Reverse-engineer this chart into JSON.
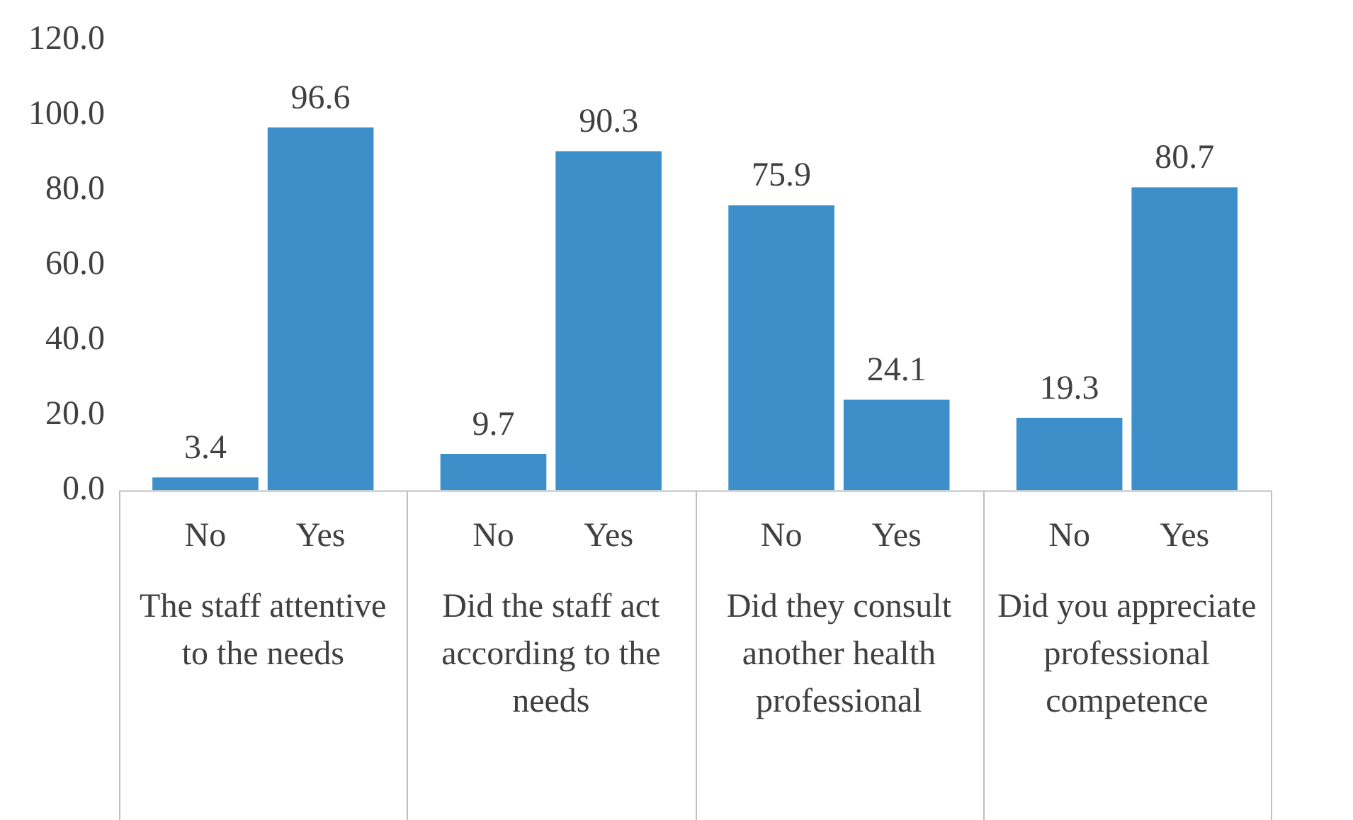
{
  "chart_data": {
    "type": "bar",
    "categories": [
      "The staff attentive to the needs",
      "Did the staff act according to the needs",
      "Did they consult another health professional",
      "Did you appreciate professional competence"
    ],
    "series": [
      {
        "name": "No",
        "color": "#3d8fca",
        "values": [
          3.4,
          9.7,
          75.9,
          19.3
        ]
      },
      {
        "name": "Yes",
        "color": "#3d8fca",
        "values": [
          96.6,
          90.3,
          24.1,
          80.7
        ]
      }
    ],
    "ylim": [
      0,
      120
    ],
    "yticks": [
      {
        "value": 0,
        "label": "0.0"
      },
      {
        "value": 20,
        "label": "20.0"
      },
      {
        "value": 40,
        "label": "40.0"
      },
      {
        "value": 60,
        "label": "60.0"
      },
      {
        "value": 80,
        "label": "80.0"
      },
      {
        "value": 100,
        "label": "100.0"
      },
      {
        "value": 120,
        "label": "120.0"
      }
    ],
    "grid": false,
    "legend": false,
    "data_labels": true
  }
}
